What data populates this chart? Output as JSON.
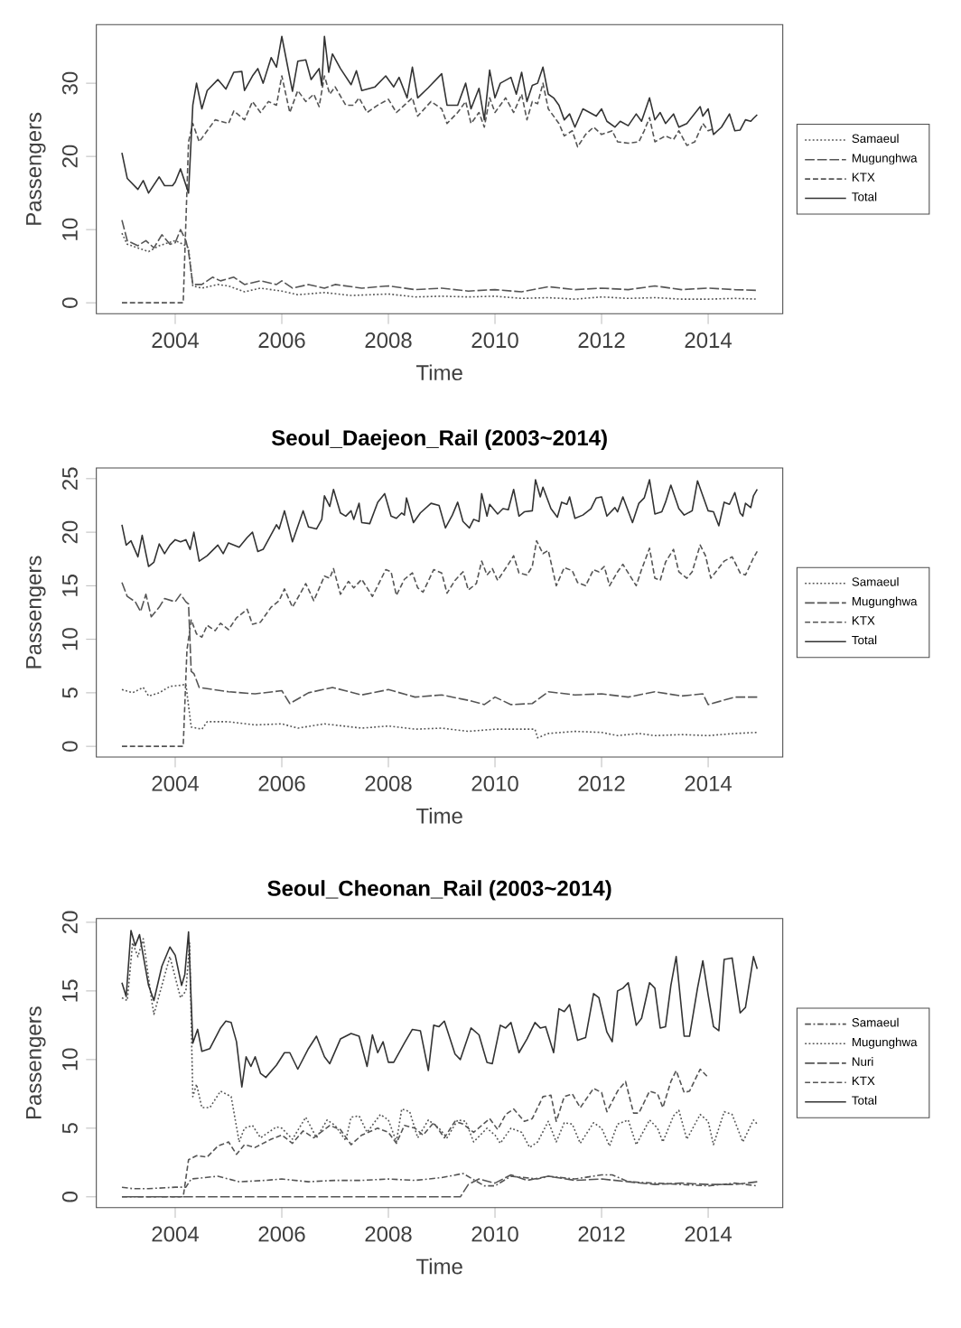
{
  "chart_data": [
    {
      "type": "line",
      "xlabel": "Time",
      "ylabel": "Passengers",
      "xlim": [
        2002.52,
        2015.4
      ],
      "ylim": [
        -1.5,
        38
      ],
      "xticks": [
        2004,
        2006,
        2008,
        2010,
        2012,
        2014
      ],
      "yticks": [
        0,
        10,
        20,
        30
      ],
      "legend": "right",
      "series": [
        {
          "name": "Samaeul",
          "color": "#555555",
          "line_style": "dotted",
          "x": [
            2003.0,
            2003.1,
            2003.3,
            2003.5,
            2003.7,
            2004.0,
            2004.15,
            2004.25,
            2004.33,
            2004.5,
            2004.8,
            2005.0,
            2005.3,
            2005.6,
            2006.0,
            2006.3,
            2006.8,
            2007.3,
            2008.0,
            2008.5,
            2009.0,
            2009.5,
            2010.0,
            2010.5,
            2011.0,
            2011.5,
            2012.0,
            2012.5,
            2013.0,
            2013.5,
            2014.0,
            2014.5,
            2014.92
          ],
          "values": [
            9.5,
            8,
            7.5,
            7,
            7.8,
            8.5,
            8,
            7.5,
            2.3,
            2,
            2.5,
            2.3,
            1.5,
            2,
            1.6,
            1.1,
            1.4,
            1,
            1.2,
            0.8,
            0.9,
            0.8,
            0.9,
            0.6,
            0.7,
            0.5,
            0.8,
            0.6,
            0.7,
            0.5,
            0.5,
            0.6,
            0.5
          ]
        },
        {
          "name": "Mugunghwa",
          "color": "#555555",
          "line_style": "longdashed",
          "x": [
            2003.0,
            2003.1,
            2003.3,
            2003.45,
            2003.6,
            2003.75,
            2003.9,
            2004.0,
            2004.1,
            2004.2,
            2004.25,
            2004.33,
            2004.5,
            2004.7,
            2004.85,
            2005.1,
            2005.3,
            2005.6,
            2005.9,
            2006.0,
            2006.2,
            2006.5,
            2006.8,
            2007.0,
            2007.5,
            2008.0,
            2008.5,
            2009.0,
            2009.5,
            2010.0,
            2010.5,
            2011.0,
            2011.5,
            2012.0,
            2012.5,
            2013.0,
            2013.5,
            2014.0,
            2014.5,
            2014.92
          ],
          "values": [
            11.3,
            8.5,
            7.8,
            8.5,
            7.5,
            9.3,
            8,
            8.2,
            10,
            8.5,
            7,
            2.5,
            2.5,
            3.5,
            3,
            3.5,
            2.5,
            3,
            2.5,
            3,
            2,
            2.5,
            2,
            2.5,
            2,
            2.3,
            1.8,
            2,
            1.6,
            1.8,
            1.5,
            2.2,
            1.8,
            2,
            1.8,
            2.3,
            1.8,
            2,
            1.8,
            1.7
          ]
        },
        {
          "name": "KTX",
          "color": "#555555",
          "line_style": "dashed",
          "x": [
            2003.0,
            2004.15,
            2004.25,
            2004.33,
            2004.45,
            2004.6,
            2004.75,
            2005.0,
            2005.1,
            2005.3,
            2005.45,
            2005.6,
            2005.75,
            2005.9,
            2006.0,
            2006.15,
            2006.3,
            2006.45,
            2006.6,
            2006.7,
            2006.8,
            2006.9,
            2007.0,
            2007.2,
            2007.35,
            2007.45,
            2007.6,
            2007.8,
            2008.0,
            2008.15,
            2008.3,
            2008.45,
            2008.55,
            2008.8,
            2009.0,
            2009.1,
            2009.3,
            2009.45,
            2009.55,
            2009.7,
            2009.8,
            2009.9,
            2010.0,
            2010.2,
            2010.35,
            2010.5,
            2010.6,
            2010.7,
            2010.8,
            2010.9,
            2011.0,
            2011.2,
            2011.3,
            2011.45,
            2011.55,
            2011.7,
            2011.85,
            2012.0,
            2012.2,
            2012.3,
            2012.5,
            2012.7,
            2012.8,
            2012.9,
            2013.0,
            2013.2,
            2013.35,
            2013.45,
            2013.6,
            2013.75,
            2013.9,
            2014.0,
            2014.1
          ],
          "values": [
            0,
            0,
            22,
            24.5,
            22,
            23.5,
            25,
            24.5,
            26.2,
            25,
            27.5,
            26,
            27.5,
            27,
            31,
            26,
            29,
            27.5,
            28.5,
            26.8,
            31,
            28.5,
            29.5,
            27,
            27,
            28,
            26,
            27,
            27.8,
            26,
            27,
            28,
            25.5,
            27.5,
            26.5,
            24.5,
            26,
            27.5,
            24.5,
            26,
            24,
            28,
            26,
            28,
            26,
            28.5,
            25,
            27.5,
            27.2,
            30,
            26.5,
            24.5,
            22.8,
            23.5,
            21.3,
            23,
            24,
            23,
            23.5,
            22,
            21.8,
            22,
            23.5,
            25.3,
            22,
            22.8,
            22.3,
            23.5,
            21.5,
            22,
            24.5,
            23.5,
            23.8
          ]
        },
        {
          "name": "Total",
          "color": "#333333",
          "line_style": "solid",
          "x": [
            2003.0,
            2003.1,
            2003.3,
            2003.4,
            2003.5,
            2003.7,
            2003.8,
            2003.95,
            2004.0,
            2004.1,
            2004.25,
            2004.33,
            2004.4,
            2004.5,
            2004.6,
            2004.8,
            2004.95,
            2005.1,
            2005.25,
            2005.3,
            2005.45,
            2005.55,
            2005.65,
            2005.8,
            2005.9,
            2006.0,
            2006.2,
            2006.3,
            2006.45,
            2006.55,
            2006.7,
            2006.75,
            2006.8,
            2006.88,
            2006.95,
            2007.1,
            2007.3,
            2007.4,
            2007.5,
            2007.75,
            2007.95,
            2008.1,
            2008.2,
            2008.35,
            2008.45,
            2008.55,
            2008.75,
            2009.0,
            2009.1,
            2009.3,
            2009.45,
            2009.55,
            2009.7,
            2009.8,
            2009.9,
            2010.0,
            2010.1,
            2010.3,
            2010.4,
            2010.5,
            2010.6,
            2010.7,
            2010.8,
            2010.9,
            2011.0,
            2011.1,
            2011.2,
            2011.3,
            2011.4,
            2011.5,
            2011.65,
            2011.9,
            2012.0,
            2012.1,
            2012.25,
            2012.35,
            2012.5,
            2012.65,
            2012.75,
            2012.9,
            2013.0,
            2013.1,
            2013.2,
            2013.35,
            2013.45,
            2013.6,
            2013.85,
            2013.9,
            2014.0,
            2014.1,
            2014.25,
            2014.4,
            2014.5,
            2014.6,
            2014.7,
            2014.8,
            2014.85,
            2014.92
          ],
          "values": [
            20.5,
            17,
            15.5,
            16.7,
            15,
            17.2,
            16,
            16,
            16.5,
            18.3,
            15,
            27,
            30,
            26.5,
            29,
            30.5,
            29.2,
            31.5,
            31.6,
            29,
            31,
            32,
            30,
            33.5,
            32.2,
            36.4,
            28.9,
            33,
            33.2,
            30.5,
            32,
            29.7,
            36.4,
            31.5,
            34,
            32,
            29.8,
            31.7,
            29,
            29.5,
            31,
            29.5,
            30.8,
            28,
            32.2,
            28,
            29.4,
            31.3,
            27,
            27,
            30,
            26.5,
            29.3,
            25,
            31.8,
            28,
            30,
            30.8,
            28.5,
            31.5,
            27.5,
            29.7,
            30,
            32.2,
            28.5,
            28,
            27,
            25,
            25.8,
            24,
            26.5,
            25.5,
            26.5,
            24.8,
            24,
            24.8,
            24.2,
            25.8,
            24.8,
            28,
            25,
            26,
            24.5,
            25.8,
            24,
            24.5,
            26.8,
            25.5,
            26.5,
            23,
            24,
            25.8,
            23.5,
            23.6,
            25,
            24.8,
            25.2,
            25.7
          ]
        }
      ]
    },
    {
      "type": "line",
      "title": "Seoul_Daejeon_Rail (2003~2014)",
      "xlabel": "Time",
      "ylabel": "Passengers",
      "xlim": [
        2002.52,
        2015.4
      ],
      "ylim": [
        -1,
        26
      ],
      "xticks": [
        2004,
        2006,
        2008,
        2010,
        2012,
        2014
      ],
      "yticks": [
        0,
        5,
        10,
        15,
        20,
        25
      ],
      "legend": "right",
      "series": [
        {
          "name": "Samaeul",
          "color": "#555555",
          "line_style": "dotted",
          "x": [
            2003.0,
            2003.2,
            2003.4,
            2003.5,
            2003.7,
            2003.9,
            2004.1,
            2004.2,
            2004.3,
            2004.5,
            2004.6,
            2005.0,
            2005.5,
            2006.0,
            2006.3,
            2006.8,
            2007.5,
            2008.0,
            2008.5,
            2009.0,
            2009.5,
            2010.0,
            2010.75,
            2010.8,
            2011.0,
            2011.5,
            2012.0,
            2012.3,
            2012.7,
            2013.0,
            2013.5,
            2014.0,
            2014.5,
            2014.92
          ],
          "values": [
            5.3,
            5,
            5.5,
            4.7,
            5,
            5.6,
            5.7,
            5.8,
            1.8,
            1.6,
            2.3,
            2.3,
            2,
            2.1,
            1.7,
            2.1,
            1.7,
            1.9,
            1.6,
            1.7,
            1.4,
            1.6,
            1.6,
            0.8,
            1.2,
            1.4,
            1.3,
            1,
            1.2,
            1,
            1.1,
            1,
            1.2,
            1.3
          ]
        },
        {
          "name": "Mugunghwa",
          "color": "#555555",
          "line_style": "longdashed",
          "x": [
            2003.0,
            2003.1,
            2003.25,
            2003.35,
            2003.45,
            2003.55,
            2003.7,
            2003.8,
            2004.0,
            2004.1,
            2004.2,
            2004.25,
            2004.3,
            2004.35,
            2004.45,
            2005.0,
            2005.5,
            2006.0,
            2006.15,
            2006.5,
            2006.95,
            2007.5,
            2008.0,
            2008.5,
            2009.0,
            2009.5,
            2009.8,
            2010.0,
            2010.3,
            2010.7,
            2011.0,
            2011.5,
            2012.0,
            2012.5,
            2013.0,
            2013.5,
            2013.9,
            2014.0,
            2014.5,
            2014.92
          ],
          "values": [
            15.3,
            14,
            13.5,
            12.6,
            14.2,
            12.1,
            13,
            13.8,
            13.5,
            14.2,
            13.5,
            13.3,
            7,
            6.8,
            5.5,
            5.1,
            4.9,
            5.2,
            4,
            5,
            5.5,
            4.8,
            5.3,
            4.6,
            4.8,
            4.3,
            3.9,
            4.6,
            3.9,
            4,
            5.1,
            4.8,
            4.9,
            4.6,
            5.1,
            4.7,
            4.9,
            3.9,
            4.6,
            4.6
          ]
        },
        {
          "name": "KTX",
          "color": "#555555",
          "line_style": "dashed",
          "x": [
            2003.0,
            2004.15,
            2004.22,
            2004.3,
            2004.4,
            2004.5,
            2004.6,
            2004.75,
            2004.85,
            2005.0,
            2005.15,
            2005.35,
            2005.45,
            2005.6,
            2005.8,
            2005.95,
            2006.05,
            2006.2,
            2006.35,
            2006.45,
            2006.6,
            2006.8,
            2006.9,
            2006.97,
            2007.1,
            2007.25,
            2007.35,
            2007.5,
            2007.7,
            2007.95,
            2008.05,
            2008.15,
            2008.3,
            2008.45,
            2008.55,
            2008.65,
            2008.85,
            2009.0,
            2009.1,
            2009.25,
            2009.4,
            2009.5,
            2009.65,
            2009.75,
            2009.85,
            2009.95,
            2010.05,
            2010.25,
            2010.35,
            2010.45,
            2010.6,
            2010.7,
            2010.78,
            2010.9,
            2011.0,
            2011.15,
            2011.3,
            2011.45,
            2011.55,
            2011.7,
            2011.85,
            2011.95,
            2012.05,
            2012.15,
            2012.3,
            2012.4,
            2012.55,
            2012.65,
            2012.75,
            2012.9,
            2013.0,
            2013.1,
            2013.2,
            2013.35,
            2013.45,
            2013.6,
            2013.7,
            2013.85,
            2013.95,
            2014.05,
            2014.3,
            2014.45,
            2014.6,
            2014.7,
            2014.85,
            2014.92
          ],
          "values": [
            0,
            0,
            9,
            11.8,
            10.5,
            10.2,
            11.3,
            10.8,
            11.5,
            10.9,
            12,
            12.8,
            11.4,
            11.6,
            13,
            13.6,
            14.7,
            13,
            14.3,
            15.2,
            13.6,
            15.9,
            15.7,
            16.6,
            14.2,
            15.4,
            14.8,
            15.6,
            14,
            16.5,
            16.3,
            14.1,
            15.6,
            16.2,
            14.8,
            14.4,
            16.5,
            16.2,
            14.3,
            15.5,
            16.3,
            14.6,
            15.2,
            17.3,
            16,
            16.6,
            15.5,
            17,
            17.8,
            16.2,
            16,
            16.8,
            19.2,
            18,
            18.3,
            15,
            16.7,
            16.4,
            15.3,
            15,
            16.5,
            16.3,
            16.8,
            15,
            16.3,
            17,
            15.8,
            15,
            16.5,
            18.5,
            15.7,
            15.5,
            17.2,
            18.4,
            16.3,
            15.7,
            16.3,
            18.8,
            17.8,
            15.7,
            17.3,
            17.7,
            16.2,
            16,
            17.6,
            18.2
          ]
        },
        {
          "name": "Total",
          "color": "#333333",
          "line_style": "solid",
          "x": [
            2003.0,
            2003.08,
            2003.17,
            2003.3,
            2003.38,
            2003.5,
            2003.6,
            2003.7,
            2003.8,
            2003.9,
            2004.0,
            2004.1,
            2004.2,
            2004.28,
            2004.35,
            2004.45,
            2004.6,
            2004.8,
            2004.9,
            2005.0,
            2005.2,
            2005.35,
            2005.45,
            2005.55,
            2005.65,
            2005.9,
            2005.95,
            2006.05,
            2006.2,
            2006.4,
            2006.5,
            2006.65,
            2006.75,
            2006.8,
            2006.9,
            2006.97,
            2007.1,
            2007.2,
            2007.3,
            2007.35,
            2007.45,
            2007.5,
            2007.65,
            2007.8,
            2007.93,
            2008.05,
            2008.15,
            2008.25,
            2008.3,
            2008.34,
            2008.47,
            2008.6,
            2008.8,
            2008.95,
            2009.07,
            2009.2,
            2009.3,
            2009.4,
            2009.52,
            2009.6,
            2009.7,
            2009.75,
            2009.85,
            2009.9,
            2010.05,
            2010.15,
            2010.25,
            2010.35,
            2010.45,
            2010.55,
            2010.7,
            2010.76,
            2010.85,
            2010.9,
            2011.05,
            2011.17,
            2011.25,
            2011.35,
            2011.4,
            2011.5,
            2011.65,
            2011.8,
            2011.9,
            2012.0,
            2012.1,
            2012.25,
            2012.3,
            2012.4,
            2012.58,
            2012.7,
            2012.8,
            2012.9,
            2013.0,
            2013.13,
            2013.2,
            2013.3,
            2013.45,
            2013.55,
            2013.7,
            2013.8,
            2014.0,
            2014.1,
            2014.2,
            2014.3,
            2014.4,
            2014.5,
            2014.6,
            2014.65,
            2014.7,
            2014.8,
            2014.85,
            2014.92
          ],
          "values": [
            20.7,
            18.8,
            19.2,
            17.7,
            19.7,
            16.8,
            17.2,
            18.9,
            18,
            18.8,
            19.3,
            19.1,
            19.3,
            18.4,
            20,
            17.3,
            17.8,
            18.8,
            18,
            19,
            18.6,
            19.5,
            20,
            18.2,
            18.4,
            20.7,
            20.3,
            22,
            19.1,
            22,
            20.5,
            20.3,
            21.2,
            23.4,
            22.4,
            24,
            21.8,
            21.5,
            22,
            21.2,
            22.7,
            20.9,
            20.8,
            22.8,
            23.6,
            21.5,
            21.3,
            21.8,
            21.6,
            23.2,
            20.9,
            21.8,
            22.7,
            22.5,
            20.4,
            21.6,
            22.8,
            21,
            20.4,
            21.2,
            21,
            23.6,
            21.5,
            22.6,
            21.7,
            22.2,
            22.1,
            24,
            21.5,
            21.9,
            22,
            24.9,
            23.3,
            24.2,
            22.2,
            21.4,
            22.8,
            22.6,
            23.3,
            21.3,
            21.6,
            22.2,
            23.2,
            23.3,
            21.5,
            22.3,
            21.9,
            23.3,
            20.9,
            22.7,
            23.2,
            24.9,
            21.7,
            21.9,
            22.8,
            24.4,
            22.2,
            21.6,
            22,
            24.8,
            22,
            21.9,
            20.6,
            22.8,
            22.6,
            23.7,
            21.8,
            21.5,
            22.7,
            22.3,
            23.4,
            24
          ]
        }
      ]
    },
    {
      "type": "line",
      "title": "Seoul_Cheonan_Rail (2003~2014)",
      "xlabel": "Time",
      "ylabel": "Passengers",
      "xlim": [
        2002.52,
        2015.4
      ],
      "ylim": [
        -0.78,
        20.28
      ],
      "xticks": [
        2004,
        2006,
        2008,
        2010,
        2012,
        2014
      ],
      "yticks": [
        0,
        5,
        10,
        15,
        20
      ],
      "legend": "right",
      "series": [
        {
          "name": "Samaeul",
          "color": "#555555",
          "line_style": "dashdotted",
          "x": [
            2003.0,
            2003.2,
            2003.5,
            2004.0,
            2004.2,
            2004.3,
            2004.8,
            2005.2,
            2005.7,
            2006.0,
            2006.5,
            2007.0,
            2007.5,
            2008.0,
            2008.5,
            2009.0,
            2009.4,
            2009.8,
            2010.0,
            2010.3,
            2010.8,
            2011.0,
            2011.5,
            2012.0,
            2012.2,
            2012.5,
            2013.0,
            2013.5,
            2014.0,
            2014.5,
            2014.92
          ],
          "values": [
            0.7,
            0.6,
            0.6,
            0.7,
            0.7,
            1.3,
            1.5,
            1.1,
            1.2,
            1.3,
            1.1,
            1.2,
            1.2,
            1.3,
            1.2,
            1.4,
            1.7,
            0.8,
            0.8,
            1.5,
            1.3,
            1.5,
            1.3,
            1.6,
            1.6,
            1.1,
            1,
            0.9,
            0.8,
            1,
            0.8
          ]
        },
        {
          "name": "Mugunghwa",
          "color": "#555555",
          "line_style": "dotted",
          "x": [
            2003.0,
            2003.1,
            2003.2,
            2003.3,
            2003.4,
            2003.55,
            2003.6,
            2003.9,
            2004.1,
            2004.2,
            2004.27,
            2004.33,
            2004.4,
            2004.5,
            2004.65,
            2004.85,
            2005.05,
            2005.2,
            2005.3,
            2005.45,
            2005.6,
            2005.9,
            2006.0,
            2006.2,
            2006.45,
            2006.65,
            2006.85,
            2007.0,
            2007.2,
            2007.3,
            2007.45,
            2007.6,
            2007.85,
            2008.0,
            2008.15,
            2008.25,
            2008.4,
            2008.55,
            2008.75,
            2008.95,
            2009.1,
            2009.3,
            2009.45,
            2009.6,
            2009.85,
            2010.0,
            2010.1,
            2010.3,
            2010.5,
            2010.65,
            2010.8,
            2011.0,
            2011.15,
            2011.3,
            2011.45,
            2011.6,
            2011.85,
            2012.0,
            2012.15,
            2012.3,
            2012.5,
            2012.65,
            2012.9,
            2013.05,
            2013.15,
            2013.35,
            2013.45,
            2013.6,
            2013.85,
            2014.0,
            2014.1,
            2014.3,
            2014.45,
            2014.65,
            2014.85,
            2014.92
          ],
          "values": [
            14.5,
            14.3,
            18.5,
            17.5,
            18.8,
            14.5,
            13.3,
            17.5,
            14.5,
            15,
            18.5,
            7.3,
            8.2,
            6.5,
            6.5,
            7.7,
            7.3,
            4,
            5,
            5.2,
            4.3,
            5.1,
            5,
            4.2,
            5.8,
            4.3,
            5.6,
            5.2,
            4.1,
            5.8,
            5.9,
            4.7,
            6,
            5.6,
            4,
            6.4,
            6.2,
            4.3,
            5.6,
            5,
            4.3,
            5.6,
            5.5,
            4,
            5,
            4.5,
            3.9,
            5,
            4.7,
            3.6,
            4,
            5.5,
            4,
            5.4,
            5.3,
            3.9,
            5.4,
            5,
            3.7,
            5.3,
            5.6,
            3.8,
            5.6,
            5,
            4,
            5.9,
            6.3,
            4.2,
            6,
            5.5,
            3.8,
            6.2,
            6,
            4,
            5.6,
            5.3
          ]
        },
        {
          "name": "Nuri",
          "color": "#555555",
          "line_style": "longdashed",
          "x": [
            2003.0,
            2009.35,
            2009.5,
            2009.7,
            2010.0,
            2010.3,
            2010.6,
            2011.0,
            2011.5,
            2012.0,
            2012.5,
            2013.0,
            2013.5,
            2014.0,
            2014.5,
            2014.92
          ],
          "values": [
            0,
            0,
            0.9,
            1.3,
            1,
            1.6,
            1.2,
            1.5,
            1.2,
            1.3,
            1.1,
            0.9,
            1,
            0.9,
            0.9,
            1.1
          ]
        },
        {
          "name": "KTX",
          "color": "#555555",
          "line_style": "dashed",
          "x": [
            2003.0,
            2004.15,
            2004.25,
            2004.4,
            2004.6,
            2004.8,
            2005.0,
            2005.15,
            2005.3,
            2005.5,
            2005.8,
            2006.0,
            2006.2,
            2006.4,
            2006.6,
            2006.9,
            2007.1,
            2007.3,
            2007.5,
            2007.8,
            2008.0,
            2008.15,
            2008.3,
            2008.5,
            2008.65,
            2008.85,
            2009.05,
            2009.25,
            2009.4,
            2009.6,
            2009.9,
            2010.05,
            2010.2,
            2010.35,
            2010.55,
            2010.7,
            2010.9,
            2011.05,
            2011.15,
            2011.3,
            2011.45,
            2011.6,
            2011.85,
            2012.0,
            2012.1,
            2012.3,
            2012.45,
            2012.6,
            2012.7,
            2012.9,
            2013.05,
            2013.15,
            2013.3,
            2013.4,
            2013.55,
            2013.65,
            2013.85,
            2014.0
          ],
          "values": [
            0,
            0,
            2.7,
            3,
            2.9,
            3.7,
            4,
            3.1,
            3.8,
            3.6,
            4.2,
            4.5,
            3.9,
            4.8,
            4.3,
            5.2,
            4.9,
            3.8,
            4.5,
            5,
            4.7,
            3.9,
            5.2,
            5,
            4.5,
            5.4,
            4.3,
            5.5,
            5.3,
            4.7,
            5.7,
            4.9,
            6,
            6.4,
            5.5,
            5.7,
            7.3,
            7.4,
            5.5,
            7.3,
            7.5,
            6.5,
            7.9,
            7.6,
            6.2,
            7.7,
            8.4,
            6.1,
            6.1,
            7.7,
            7.5,
            6.5,
            8.4,
            9.2,
            7.6,
            7.7,
            9.3,
            8.7
          ]
        },
        {
          "name": "Total",
          "color": "#333333",
          "line_style": "solid",
          "x": [
            2003.0,
            2003.08,
            2003.17,
            2003.25,
            2003.33,
            2003.5,
            2003.6,
            2003.75,
            2003.9,
            2004.0,
            2004.12,
            2004.18,
            2004.25,
            2004.33,
            2004.42,
            2004.5,
            2004.65,
            2004.85,
            2004.95,
            2005.05,
            2005.15,
            2005.25,
            2005.33,
            2005.42,
            2005.5,
            2005.6,
            2005.7,
            2005.9,
            2006.05,
            2006.15,
            2006.3,
            2006.5,
            2006.65,
            2006.8,
            2006.9,
            2007.1,
            2007.3,
            2007.45,
            2007.6,
            2007.7,
            2007.8,
            2007.9,
            2008.0,
            2008.1,
            2008.3,
            2008.45,
            2008.6,
            2008.75,
            2008.85,
            2008.95,
            2009.05,
            2009.25,
            2009.35,
            2009.55,
            2009.7,
            2009.85,
            2009.95,
            2010.1,
            2010.2,
            2010.3,
            2010.45,
            2010.6,
            2010.75,
            2010.85,
            2010.95,
            2011.1,
            2011.2,
            2011.3,
            2011.4,
            2011.55,
            2011.7,
            2011.85,
            2011.95,
            2012.1,
            2012.2,
            2012.3,
            2012.4,
            2012.5,
            2012.65,
            2012.75,
            2012.9,
            2013.0,
            2013.1,
            2013.2,
            2013.3,
            2013.4,
            2013.55,
            2013.65,
            2013.8,
            2013.9,
            2014.0,
            2014.1,
            2014.2,
            2014.3,
            2014.45,
            2014.6,
            2014.7,
            2014.85,
            2014.92
          ],
          "values": [
            15.6,
            14.6,
            19.4,
            18.3,
            19.1,
            15.4,
            14.3,
            16.8,
            18.2,
            17.6,
            15.4,
            16.2,
            19.3,
            11.2,
            12.2,
            10.6,
            10.8,
            12.3,
            12.8,
            12.7,
            11.3,
            8,
            10.2,
            9.5,
            10.2,
            9,
            8.7,
            9.6,
            10.5,
            10.5,
            9.3,
            10.8,
            11.7,
            10.2,
            9.7,
            11.5,
            11.9,
            11.7,
            9.5,
            11.8,
            10.5,
            11.3,
            9.8,
            9.8,
            11.2,
            12.2,
            12.1,
            9.2,
            12.5,
            12.4,
            12.8,
            10.4,
            10,
            12.3,
            11.8,
            9.8,
            9.7,
            12.5,
            12.3,
            12.7,
            10.5,
            11.5,
            12.7,
            12.3,
            12.4,
            10.5,
            13.7,
            13.5,
            14,
            11.4,
            11.6,
            14.8,
            14.5,
            12,
            11.3,
            15,
            15.2,
            15.6,
            12.5,
            13,
            15.6,
            15.2,
            12.3,
            12.4,
            15.4,
            17.5,
            11.7,
            11.7,
            15.2,
            17.2,
            14.7,
            12.4,
            12.1,
            17.3,
            17.4,
            13.4,
            13.8,
            17.5,
            16.6
          ]
        }
      ]
    }
  ]
}
